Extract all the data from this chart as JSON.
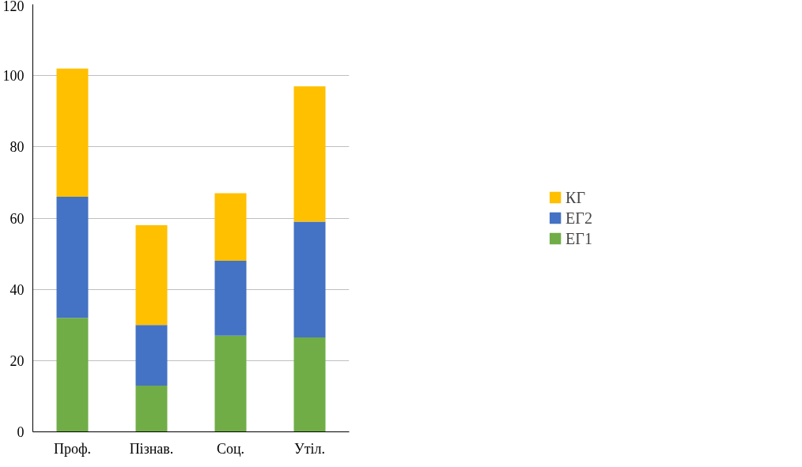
{
  "chart_data": {
    "type": "bar",
    "stacked": true,
    "categories": [
      "Проф.",
      "Пізнав.",
      "Соц.",
      "Утіл."
    ],
    "series": [
      {
        "name": "ЕГ1",
        "color": "#70ad47",
        "values": [
          32,
          13,
          27,
          26.5
        ]
      },
      {
        "name": "ЕГ2",
        "color": "#4472c4",
        "values": [
          34,
          17,
          21,
          32.5
        ]
      },
      {
        "name": "КГ",
        "color": "#ffc000",
        "values": [
          36,
          28,
          19,
          38
        ]
      }
    ],
    "ylim": [
      0,
      120
    ],
    "yticks": [
      0,
      20,
      40,
      60,
      80,
      100,
      120
    ],
    "grid": "y",
    "legend": "right"
  }
}
